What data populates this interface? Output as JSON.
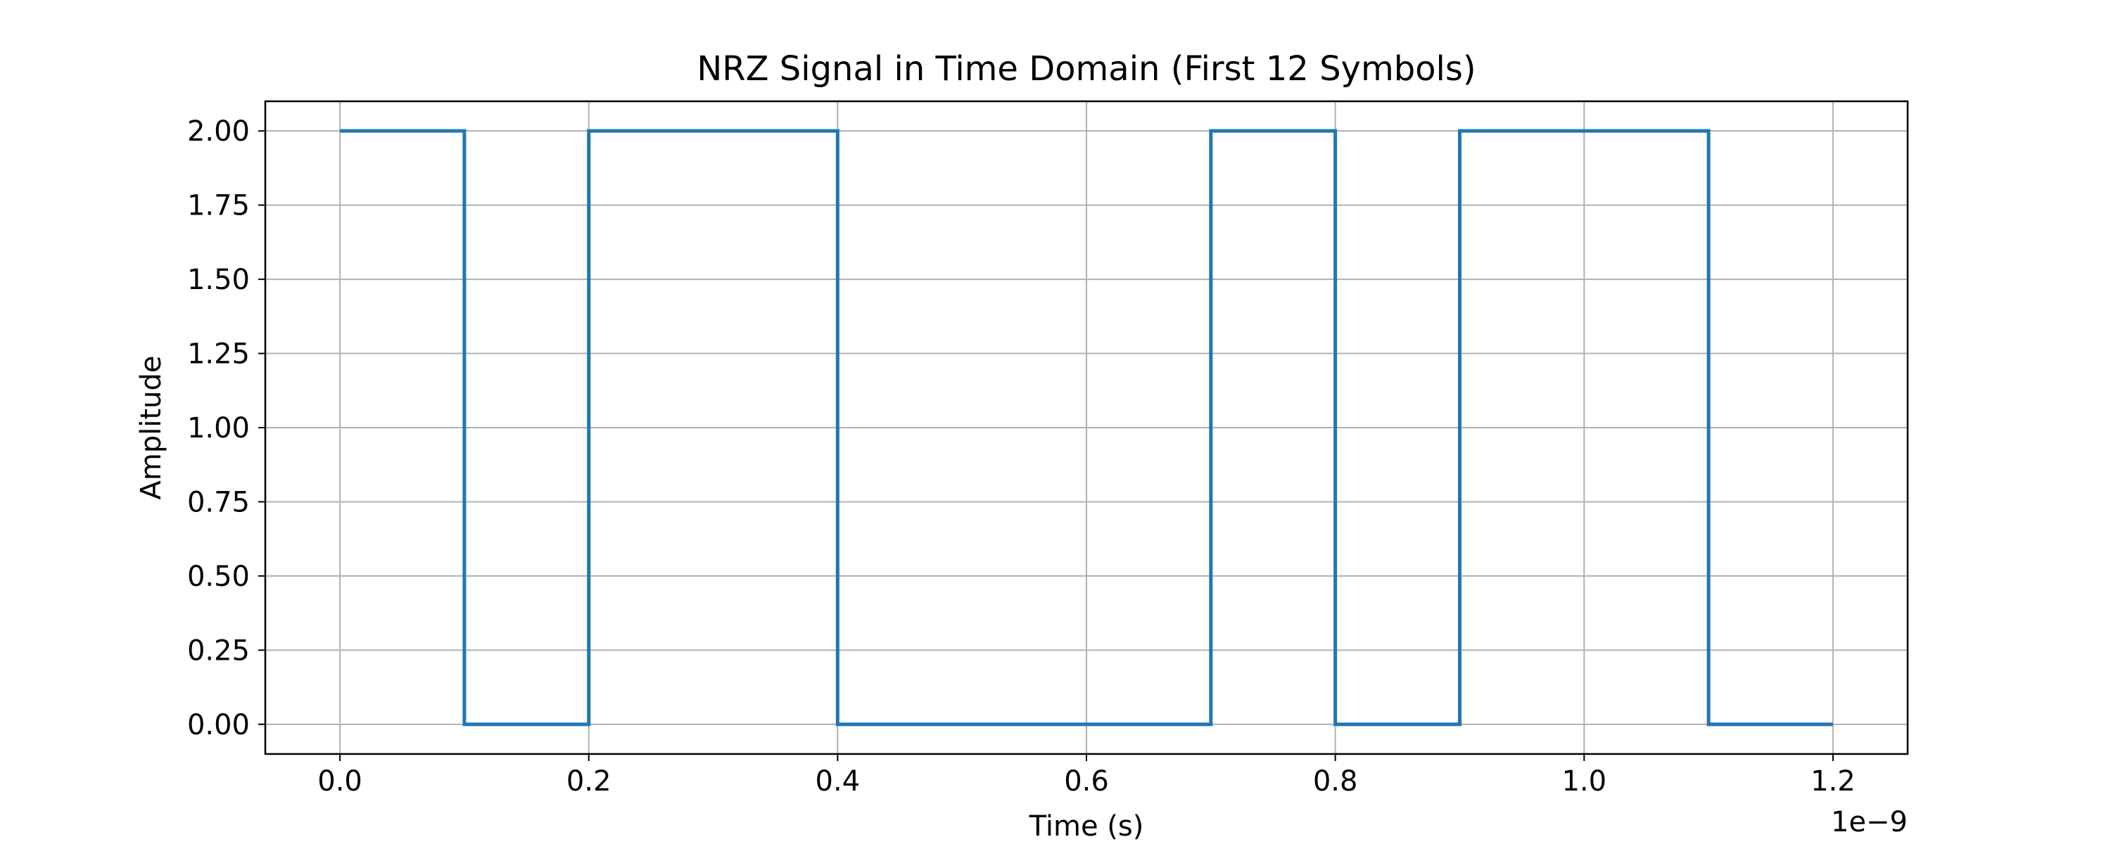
{
  "chart_data": {
    "type": "line",
    "drawstyle": "steps-post",
    "title": "NRZ Signal in Time Domain (First 12 Symbols)",
    "xlabel": "Time (s)",
    "ylabel": "Amplitude",
    "x_offset_text": "1e−9",
    "xlim": [
      -0.06,
      1.26
    ],
    "ylim": [
      -0.1,
      2.1
    ],
    "grid": true,
    "x_ticks": [
      0.0,
      0.2,
      0.4,
      0.6,
      0.8,
      1.0,
      1.2
    ],
    "x_tick_labels": [
      "0.0",
      "0.2",
      "0.4",
      "0.6",
      "0.8",
      "1.0",
      "1.2"
    ],
    "y_ticks": [
      0.0,
      0.25,
      0.5,
      0.75,
      1.0,
      1.25,
      1.5,
      1.75,
      2.0
    ],
    "y_tick_labels": [
      "0.00",
      "0.25",
      "0.50",
      "0.75",
      "1.00",
      "1.25",
      "1.50",
      "1.75",
      "2.00"
    ],
    "series": [
      {
        "color": "#1f77b4",
        "x": [
          0.0,
          0.1,
          0.2,
          0.3,
          0.4,
          0.5,
          0.6,
          0.7,
          0.8,
          0.9,
          1.0,
          1.1,
          1.2
        ],
        "y": [
          2,
          0,
          2,
          2,
          0,
          0,
          0,
          2,
          0,
          2,
          2,
          0,
          0
        ]
      }
    ]
  }
}
